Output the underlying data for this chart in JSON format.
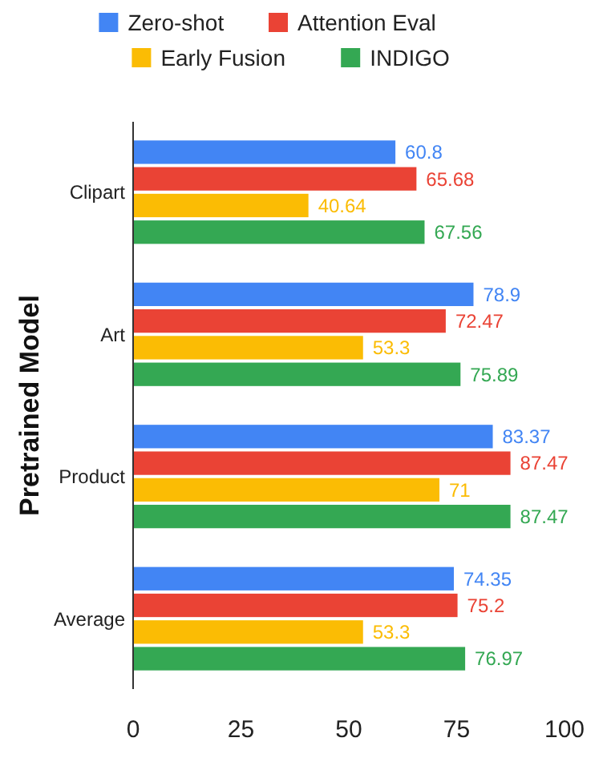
{
  "chart_data": {
    "type": "bar",
    "orientation": "horizontal",
    "ylabel": "Pretrained Model",
    "categories": [
      "Clipart",
      "Art",
      "Product",
      "Average"
    ],
    "series": [
      {
        "name": "Zero-shot",
        "color": "#4285f4",
        "values": [
          60.8,
          78.9,
          83.37,
          74.35
        ]
      },
      {
        "name": "Attention Eval",
        "color": "#ea4335",
        "values": [
          65.68,
          72.47,
          87.47,
          75.2
        ]
      },
      {
        "name": "Early Fusion",
        "color": "#fbbc04",
        "values": [
          40.64,
          53.3,
          71,
          53.3
        ]
      },
      {
        "name": "INDIGO",
        "color": "#34a853",
        "values": [
          67.56,
          75.89,
          87.47,
          76.97
        ]
      }
    ],
    "xlim": [
      0,
      100
    ],
    "xticks": [
      0,
      25,
      50,
      75,
      100
    ],
    "data_labels": true,
    "legend": "top",
    "grid": false
  }
}
